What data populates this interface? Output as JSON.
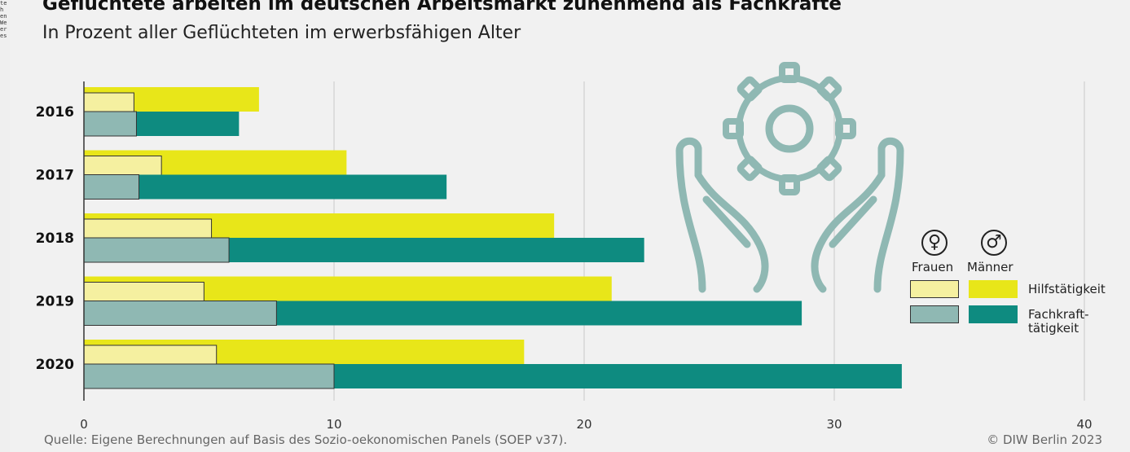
{
  "page": {
    "title": "Geflüchtete arbeiten im deutschen Arbeitsmarkt zunehmend als Fachkräfte",
    "subtitle": "In Prozent aller Geflüchteten im erwerbsfähigen Alter",
    "source": "Quelle: Eigene Berechnungen auf Basis des Sozio-oekonomischen Panels (SOEP v37).",
    "copyright": "© DIW Berlin 2023",
    "side_fragments": [
      "te",
      "h",
      "en",
      "We",
      "er",
      "es"
    ]
  },
  "chart_data": {
    "type": "bar",
    "orientation": "horizontal",
    "title": "Geflüchtete arbeiten im deutschen Arbeitsmarkt zunehmend als Fachkräfte",
    "subtitle": "In Prozent aller Geflüchteten im erwerbsfähigen Alter",
    "categories": [
      "2016",
      "2017",
      "2018",
      "2019",
      "2020"
    ],
    "xlim": [
      0,
      40
    ],
    "xticks": [
      0,
      10,
      20,
      30,
      40
    ],
    "grid": true,
    "legend_position": "right",
    "legend": {
      "gender_headers": [
        "Frauen",
        "Männer"
      ],
      "gender_symbols": [
        "♀",
        "♂"
      ],
      "rows": [
        {
          "label": "Hilfstätigkeit",
          "colors": [
            "#f5f0a0",
            "#e8e619"
          ]
        },
        {
          "label": "Fachkraft- tätigkeit",
          "colors": [
            "#8fb8b3",
            "#0e8b80"
          ]
        }
      ]
    },
    "series": [
      {
        "name": "Hilfstätigkeit Männer",
        "color": "#e8e619",
        "values": [
          7.0,
          10.5,
          18.8,
          21.1,
          17.6
        ]
      },
      {
        "name": "Hilfstätigkeit Frauen",
        "color": "#f5f0a0",
        "values": [
          2.0,
          3.1,
          5.1,
          4.8,
          5.3
        ]
      },
      {
        "name": "Fachkrafttätigkeit Männer",
        "color": "#0e8b80",
        "values": [
          6.2,
          14.5,
          22.4,
          28.7,
          32.7
        ]
      },
      {
        "name": "Fachkrafttätigkeit Frauen",
        "color": "#8fb8b3",
        "values": [
          2.1,
          2.2,
          5.8,
          7.7,
          10.0
        ]
      }
    ]
  }
}
